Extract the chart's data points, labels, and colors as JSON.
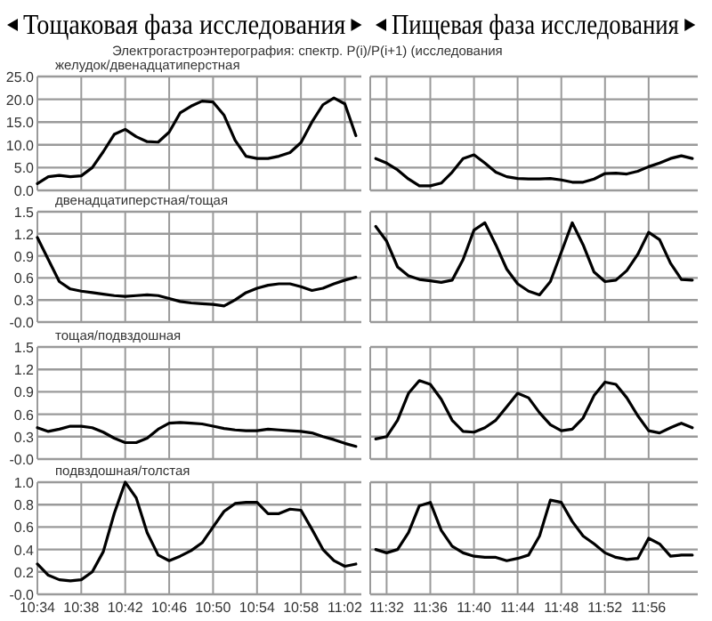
{
  "chart_data": [
    {
      "type": "line",
      "title": "Тощаковая фаза исследования",
      "subtitle": "Электрогастроэнтерография: спектр. P(i)/P(i+1)  (исследования",
      "annotations": [
        "желудок/двенадцатиперстная"
      ],
      "grid": true,
      "tick_labels": "y",
      "x": [
        10.5667,
        10.5833,
        10.6,
        10.6167,
        10.6333,
        10.65,
        10.6667,
        10.6833,
        10.7,
        10.7167,
        10.7333,
        10.75,
        10.7667,
        10.7833,
        10.8,
        10.8167,
        10.8333,
        10.85,
        10.8667,
        10.8833,
        10.9,
        10.9167,
        10.9333,
        10.95,
        10.9667,
        10.9833,
        11,
        11.0167,
        11.0333,
        11.05
      ],
      "xlim": [
        10.5667,
        11.0583
      ],
      "xticks": [
        {
          "value": 10.5667,
          "label": null
        },
        {
          "value": 10.6333,
          "label": null
        },
        {
          "value": 10.7,
          "label": null
        },
        {
          "value": 10.7667,
          "label": null
        },
        {
          "value": 10.8333,
          "label": null
        },
        {
          "value": 10.9,
          "label": null
        },
        {
          "value": 10.9667,
          "label": null
        },
        {
          "value": 11.0333,
          "label": null
        }
      ],
      "ylim": [
        0,
        25
      ],
      "yticks": [
        {
          "value": 0,
          "label": "0.0"
        },
        {
          "value": 5,
          "label": "5.0"
        },
        {
          "value": 10,
          "label": "10.0"
        },
        {
          "value": 15,
          "label": "15.0"
        },
        {
          "value": 20,
          "label": "20.0"
        },
        {
          "value": 25,
          "label": "25.0"
        }
      ],
      "series": [
        {
          "color": "#000000",
          "values": [
            1.5,
            3.0,
            3.3,
            3.0,
            3.2,
            5.0,
            8.5,
            12.3,
            13.4,
            11.8,
            10.7,
            10.6,
            12.8,
            17.0,
            18.5,
            19.6,
            19.4,
            16.5,
            11.0,
            7.5,
            7.0,
            7.0,
            7.5,
            8.3,
            10.5,
            15.0,
            18.8,
            20.3,
            19.0,
            12.0
          ]
        }
      ]
    },
    {
      "type": "line",
      "title": "Пищевая фаза исследования",
      "grid": true,
      "tick_labels": false,
      "x": [
        11.5167,
        11.5333,
        11.55,
        11.5667,
        11.5833,
        11.6,
        11.6167,
        11.6333,
        11.65,
        11.6667,
        11.6833,
        11.7,
        11.7167,
        11.7333,
        11.75,
        11.7667,
        11.7833,
        11.8,
        11.8167,
        11.8333,
        11.85,
        11.8667,
        11.8833,
        11.9,
        11.9167,
        11.9333,
        11.95,
        11.9667,
        11.9833,
        12
      ],
      "xlim": [
        11.5083,
        12.0083
      ],
      "xticks": [
        {
          "value": 11.5333,
          "label": null
        },
        {
          "value": 11.6,
          "label": null
        },
        {
          "value": 11.6667,
          "label": null
        },
        {
          "value": 11.7333,
          "label": null
        },
        {
          "value": 11.8,
          "label": null
        },
        {
          "value": 11.8667,
          "label": null
        },
        {
          "value": 11.9333,
          "label": null
        }
      ],
      "ylim": [
        0,
        25
      ],
      "yticks": [
        {
          "value": 0,
          "label": null
        },
        {
          "value": 5,
          "label": null
        },
        {
          "value": 10,
          "label": null
        },
        {
          "value": 15,
          "label": null
        },
        {
          "value": 20,
          "label": null
        },
        {
          "value": 25,
          "label": null
        }
      ],
      "series": [
        {
          "color": "#000000",
          "values": [
            7.0,
            6.0,
            4.5,
            2.5,
            1.0,
            1.0,
            1.6,
            4.0,
            7.0,
            7.8,
            6.0,
            4.0,
            3.0,
            2.6,
            2.5,
            2.5,
            2.6,
            2.3,
            1.8,
            1.8,
            2.5,
            3.7,
            3.8,
            3.6,
            4.2,
            5.2,
            6.0,
            7.0,
            7.6,
            7.0
          ]
        }
      ]
    },
    {
      "type": "line",
      "annotations": [
        "двенадцатиперстная/тощая"
      ],
      "grid": true,
      "tick_labels": "y",
      "x": [
        10.5667,
        10.5833,
        10.6,
        10.6167,
        10.6333,
        10.65,
        10.6667,
        10.6833,
        10.7,
        10.7167,
        10.7333,
        10.75,
        10.7667,
        10.7833,
        10.8,
        10.8167,
        10.8333,
        10.85,
        10.8667,
        10.8833,
        10.9,
        10.9167,
        10.9333,
        10.95,
        10.9667,
        10.9833,
        11,
        11.0167,
        11.0333,
        11.05
      ],
      "xlim": [
        10.5667,
        11.0583
      ],
      "xticks": [
        {
          "value": 10.5667,
          "label": null
        },
        {
          "value": 10.6333,
          "label": null
        },
        {
          "value": 10.7,
          "label": null
        },
        {
          "value": 10.7667,
          "label": null
        },
        {
          "value": 10.8333,
          "label": null
        },
        {
          "value": 10.9,
          "label": null
        },
        {
          "value": 10.9667,
          "label": null
        },
        {
          "value": 11.0333,
          "label": null
        }
      ],
      "ylim": [
        0,
        1.5
      ],
      "yticks": [
        {
          "value": 0,
          "label": "-0.0"
        },
        {
          "value": 0.3,
          "label": "0.3"
        },
        {
          "value": 0.6,
          "label": "0.6"
        },
        {
          "value": 0.9,
          "label": "0.9"
        },
        {
          "value": 1.2,
          "label": "1.2"
        },
        {
          "value": 1.5,
          "label": "1.5"
        }
      ],
      "series": [
        {
          "color": "#000000",
          "values": [
            1.15,
            0.85,
            0.55,
            0.45,
            0.42,
            0.4,
            0.38,
            0.36,
            0.35,
            0.36,
            0.37,
            0.36,
            0.32,
            0.28,
            0.26,
            0.25,
            0.24,
            0.22,
            0.3,
            0.4,
            0.46,
            0.5,
            0.52,
            0.52,
            0.48,
            0.43,
            0.46,
            0.52,
            0.57,
            0.61
          ]
        }
      ]
    },
    {
      "type": "line",
      "grid": true,
      "tick_labels": false,
      "x": [
        11.5167,
        11.5333,
        11.55,
        11.5667,
        11.5833,
        11.6,
        11.6167,
        11.6333,
        11.65,
        11.6667,
        11.6833,
        11.7,
        11.7167,
        11.7333,
        11.75,
        11.7667,
        11.7833,
        11.8,
        11.8167,
        11.8333,
        11.85,
        11.8667,
        11.8833,
        11.9,
        11.9167,
        11.9333,
        11.95,
        11.9667,
        11.9833,
        12
      ],
      "xlim": [
        11.5083,
        12.0083
      ],
      "xticks": [
        {
          "value": 11.5333,
          "label": null
        },
        {
          "value": 11.6,
          "label": null
        },
        {
          "value": 11.6667,
          "label": null
        },
        {
          "value": 11.7333,
          "label": null
        },
        {
          "value": 11.8,
          "label": null
        },
        {
          "value": 11.8667,
          "label": null
        },
        {
          "value": 11.9333,
          "label": null
        }
      ],
      "ylim": [
        0,
        1.5
      ],
      "yticks": [
        {
          "value": 0,
          "label": null
        },
        {
          "value": 0.3,
          "label": null
        },
        {
          "value": 0.6,
          "label": null
        },
        {
          "value": 0.9,
          "label": null
        },
        {
          "value": 1.2,
          "label": null
        },
        {
          "value": 1.5,
          "label": null
        }
      ],
      "series": [
        {
          "color": "#000000",
          "values": [
            1.3,
            1.1,
            0.75,
            0.63,
            0.58,
            0.56,
            0.54,
            0.57,
            0.85,
            1.25,
            1.35,
            1.05,
            0.72,
            0.52,
            0.42,
            0.37,
            0.55,
            0.95,
            1.35,
            1.05,
            0.68,
            0.55,
            0.57,
            0.7,
            0.92,
            1.22,
            1.12,
            0.8,
            0.58,
            0.57
          ]
        }
      ]
    },
    {
      "type": "line",
      "annotations": [
        "тощая/подвздошная"
      ],
      "grid": true,
      "tick_labels": "y",
      "x": [
        10.5667,
        10.5833,
        10.6,
        10.6167,
        10.6333,
        10.65,
        10.6667,
        10.6833,
        10.7,
        10.7167,
        10.7333,
        10.75,
        10.7667,
        10.7833,
        10.8,
        10.8167,
        10.8333,
        10.85,
        10.8667,
        10.8833,
        10.9,
        10.9167,
        10.9333,
        10.95,
        10.9667,
        10.9833,
        11,
        11.0167,
        11.0333,
        11.05
      ],
      "xlim": [
        10.5667,
        11.0583
      ],
      "xticks": [
        {
          "value": 10.5667,
          "label": null
        },
        {
          "value": 10.6333,
          "label": null
        },
        {
          "value": 10.7,
          "label": null
        },
        {
          "value": 10.7667,
          "label": null
        },
        {
          "value": 10.8333,
          "label": null
        },
        {
          "value": 10.9,
          "label": null
        },
        {
          "value": 10.9667,
          "label": null
        },
        {
          "value": 11.0333,
          "label": null
        }
      ],
      "ylim": [
        0,
        1.5
      ],
      "yticks": [
        {
          "value": 0,
          "label": "-0.0"
        },
        {
          "value": 0.3,
          "label": "0.3"
        },
        {
          "value": 0.6,
          "label": "0.6"
        },
        {
          "value": 0.9,
          "label": "0.9"
        },
        {
          "value": 1.2,
          "label": "1.2"
        },
        {
          "value": 1.5,
          "label": "1.5"
        }
      ],
      "series": [
        {
          "color": "#000000",
          "values": [
            0.42,
            0.37,
            0.4,
            0.44,
            0.44,
            0.42,
            0.36,
            0.28,
            0.22,
            0.22,
            0.28,
            0.4,
            0.48,
            0.49,
            0.48,
            0.47,
            0.44,
            0.41,
            0.39,
            0.38,
            0.38,
            0.4,
            0.39,
            0.38,
            0.37,
            0.35,
            0.3,
            0.26,
            0.21,
            0.17
          ]
        }
      ]
    },
    {
      "type": "line",
      "grid": true,
      "tick_labels": false,
      "x": [
        11.5167,
        11.5333,
        11.55,
        11.5667,
        11.5833,
        11.6,
        11.6167,
        11.6333,
        11.65,
        11.6667,
        11.6833,
        11.7,
        11.7167,
        11.7333,
        11.75,
        11.7667,
        11.7833,
        11.8,
        11.8167,
        11.8333,
        11.85,
        11.8667,
        11.8833,
        11.9,
        11.9167,
        11.9333,
        11.95,
        11.9667,
        11.9833,
        12
      ],
      "xlim": [
        11.5083,
        12.0083
      ],
      "xticks": [
        {
          "value": 11.5333,
          "label": null
        },
        {
          "value": 11.6,
          "label": null
        },
        {
          "value": 11.6667,
          "label": null
        },
        {
          "value": 11.7333,
          "label": null
        },
        {
          "value": 11.8,
          "label": null
        },
        {
          "value": 11.8667,
          "label": null
        },
        {
          "value": 11.9333,
          "label": null
        }
      ],
      "ylim": [
        0,
        1.5
      ],
      "yticks": [
        {
          "value": 0,
          "label": null
        },
        {
          "value": 0.3,
          "label": null
        },
        {
          "value": 0.6,
          "label": null
        },
        {
          "value": 0.9,
          "label": null
        },
        {
          "value": 1.2,
          "label": null
        },
        {
          "value": 1.5,
          "label": null
        }
      ],
      "series": [
        {
          "color": "#000000",
          "values": [
            0.27,
            0.3,
            0.52,
            0.88,
            1.05,
            1.0,
            0.8,
            0.52,
            0.37,
            0.36,
            0.42,
            0.52,
            0.7,
            0.88,
            0.82,
            0.62,
            0.46,
            0.38,
            0.4,
            0.55,
            0.85,
            1.03,
            1.0,
            0.82,
            0.58,
            0.38,
            0.35,
            0.42,
            0.48,
            0.42
          ]
        }
      ]
    },
    {
      "type": "line",
      "annotations": [
        "подвздошная/толстая"
      ],
      "grid": true,
      "x": [
        10.5667,
        10.5833,
        10.6,
        10.6167,
        10.6333,
        10.65,
        10.6667,
        10.6833,
        10.7,
        10.7167,
        10.7333,
        10.75,
        10.7667,
        10.7833,
        10.8,
        10.8167,
        10.8333,
        10.85,
        10.8667,
        10.8833,
        10.9,
        10.9167,
        10.9333,
        10.95,
        10.9667,
        10.9833,
        11,
        11.0167,
        11.0333,
        11.05
      ],
      "xlim": [
        10.5667,
        11.0583
      ],
      "xticks": [
        {
          "value": 10.5667,
          "label": "10:34"
        },
        {
          "value": 10.6333,
          "label": "10:38"
        },
        {
          "value": 10.7,
          "label": "10:42"
        },
        {
          "value": 10.7667,
          "label": "10:46"
        },
        {
          "value": 10.8333,
          "label": "10:50"
        },
        {
          "value": 10.9,
          "label": "10:54"
        },
        {
          "value": 10.9667,
          "label": "10:58"
        },
        {
          "value": 11.0333,
          "label": "11:02"
        }
      ],
      "ylim": [
        0,
        1
      ],
      "yticks": [
        {
          "value": 0,
          "label": "-0.0"
        },
        {
          "value": 0.2,
          "label": "0.2"
        },
        {
          "value": 0.4,
          "label": "0.4"
        },
        {
          "value": 0.6,
          "label": "0.6"
        },
        {
          "value": 0.8,
          "label": "0.8"
        },
        {
          "value": 1,
          "label": "1.0"
        }
      ],
      "series": [
        {
          "color": "#000000",
          "values": [
            0.27,
            0.17,
            0.13,
            0.12,
            0.13,
            0.2,
            0.38,
            0.72,
            1.0,
            0.86,
            0.55,
            0.35,
            0.3,
            0.34,
            0.39,
            0.46,
            0.6,
            0.74,
            0.81,
            0.82,
            0.82,
            0.72,
            0.72,
            0.76,
            0.75,
            0.58,
            0.4,
            0.3,
            0.25,
            0.27
          ]
        }
      ]
    },
    {
      "type": "line",
      "grid": true,
      "tick_labels": "x",
      "x": [
        11.5167,
        11.5333,
        11.55,
        11.5667,
        11.5833,
        11.6,
        11.6167,
        11.6333,
        11.65,
        11.6667,
        11.6833,
        11.7,
        11.7167,
        11.7333,
        11.75,
        11.7667,
        11.7833,
        11.8,
        11.8167,
        11.8333,
        11.85,
        11.8667,
        11.8833,
        11.9,
        11.9167,
        11.9333,
        11.95,
        11.9667,
        11.9833,
        12
      ],
      "xlim": [
        11.5083,
        12.0083
      ],
      "xticks": [
        {
          "value": 11.5333,
          "label": "11:32"
        },
        {
          "value": 11.6,
          "label": "11:36"
        },
        {
          "value": 11.6667,
          "label": "11:40"
        },
        {
          "value": 11.7333,
          "label": "11:44"
        },
        {
          "value": 11.8,
          "label": "11:48"
        },
        {
          "value": 11.8667,
          "label": "11:52"
        },
        {
          "value": 11.9333,
          "label": "11:56"
        }
      ],
      "ylim": [
        0,
        1
      ],
      "yticks": [
        {
          "value": 0,
          "label": null
        },
        {
          "value": 0.2,
          "label": null
        },
        {
          "value": 0.4,
          "label": null
        },
        {
          "value": 0.6,
          "label": null
        },
        {
          "value": 0.8,
          "label": null
        },
        {
          "value": 1,
          "label": null
        }
      ],
      "series": [
        {
          "color": "#000000",
          "values": [
            0.4,
            0.37,
            0.4,
            0.55,
            0.79,
            0.82,
            0.57,
            0.43,
            0.37,
            0.34,
            0.33,
            0.33,
            0.3,
            0.32,
            0.35,
            0.52,
            0.84,
            0.82,
            0.65,
            0.52,
            0.45,
            0.37,
            0.33,
            0.31,
            0.32,
            0.5,
            0.45,
            0.34,
            0.35,
            0.35
          ]
        }
      ]
    }
  ]
}
